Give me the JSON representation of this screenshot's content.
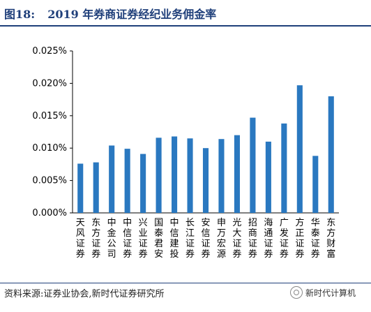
{
  "figure": {
    "label": "图18:",
    "title": "2019 年券商证券经纪业务佣金率",
    "source": "资料来源:证券业协会,新时代证券研究所",
    "watermark": "新时代计算机"
  },
  "colors": {
    "bar": "#2a78c0",
    "title": "#1f3f7a"
  },
  "chart_data": {
    "type": "bar",
    "title": "2019 年券商证券经纪业务佣金率",
    "xlabel": "",
    "ylabel": "",
    "categories": [
      "天风证券",
      "东方证券",
      "中金公司",
      "中信证券",
      "兴业证券",
      "国泰君安",
      "中信建投",
      "长江证券",
      "安信证券",
      "申万宏源",
      "光大证券",
      "招商证券",
      "海通证券",
      "广发证券",
      "方正证券",
      "华泰证券",
      "东方财富"
    ],
    "values": [
      0.0076,
      0.0078,
      0.0104,
      0.0099,
      0.0091,
      0.0116,
      0.0118,
      0.0115,
      0.01,
      0.0114,
      0.012,
      0.0147,
      0.011,
      0.0138,
      0.0197,
      0.0088,
      0.018
    ],
    "ylim": [
      0,
      0.025
    ],
    "yticks": [
      "0.000%",
      "0.005%",
      "0.010%",
      "0.015%",
      "0.020%",
      "0.025%"
    ],
    "grid": false,
    "legend": "none"
  }
}
